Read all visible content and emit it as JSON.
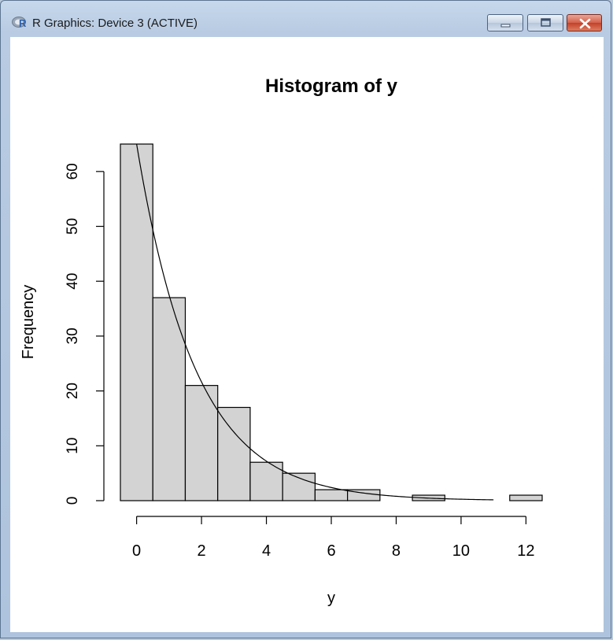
{
  "window": {
    "title": "R Graphics: Device 3 (ACTIVE)",
    "icon": "r-logo-icon",
    "controls": [
      "minimize-icon",
      "maximize-icon",
      "close-icon"
    ]
  },
  "chart_data": {
    "type": "bar",
    "title": "Histogram of y",
    "xlabel": "y",
    "ylabel": "Frequency",
    "bin_edges": [
      -0.5,
      0.5,
      1.5,
      2.5,
      3.5,
      4.5,
      5.5,
      6.5,
      7.5,
      8.5,
      9.5,
      10.5,
      11.5,
      12.5
    ],
    "counts": [
      65,
      37,
      21,
      17,
      7,
      5,
      2,
      2,
      0,
      1,
      0,
      0,
      1
    ],
    "x_ticks": [
      "0",
      "2",
      "4",
      "6",
      "8",
      "10",
      "12"
    ],
    "y_ticks": [
      "0",
      "10",
      "20",
      "30",
      "40",
      "50",
      "60"
    ],
    "xlim": [
      -0.5,
      12.5
    ],
    "ylim": [
      0,
      65
    ],
    "curve": {
      "type": "exponential",
      "scale": 65,
      "rate": 0.55,
      "x_start": 0,
      "x_end": 11
    },
    "bar_fill": "#d3d3d3",
    "bar_stroke": "#000000",
    "grid": false,
    "legend": "none"
  }
}
